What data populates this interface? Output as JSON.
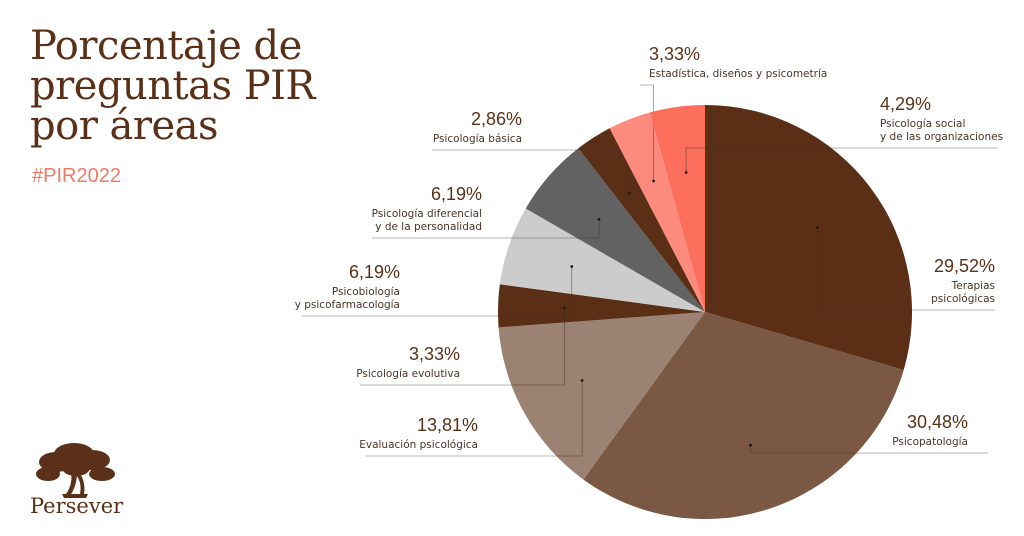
{
  "header": {
    "title_lines": [
      "Porcentaje de",
      "preguntas PIR",
      "por áreas"
    ],
    "hashtag": "#PIR2022"
  },
  "brand": {
    "name": "Persever",
    "logo_icon": "tree-icon",
    "color": "#5a3118"
  },
  "chart_data": {
    "type": "pie",
    "title": "Porcentaje de preguntas PIR por áreas",
    "slices": [
      {
        "label": [
          "Terapias",
          "psicológicas"
        ],
        "value": 29.52,
        "display": "29,52%",
        "color": "#5a2f16"
      },
      {
        "label": [
          "Psicopatología"
        ],
        "value": 30.48,
        "display": "30,48%",
        "color": "#7a5843"
      },
      {
        "label": [
          "Evaluación psicológica"
        ],
        "value": 13.81,
        "display": "13,81%",
        "color": "#9c8272"
      },
      {
        "label": [
          "Psicología evolutiva"
        ],
        "value": 3.33,
        "display": "3,33%",
        "color": "#5a2f16"
      },
      {
        "label": [
          "Psicobiología",
          "y psicofarmacología"
        ],
        "value": 6.19,
        "display": "6,19%",
        "color": "#cccccc"
      },
      {
        "label": [
          "Psicología diferencial",
          "y de la personalidad"
        ],
        "value": 6.19,
        "display": "6,19%",
        "color": "#626262"
      },
      {
        "label": [
          "Psicología básica"
        ],
        "value": 2.86,
        "display": "2,86%",
        "color": "#5a2f16"
      },
      {
        "label": [
          "Estadística, diseños y psicometría"
        ],
        "value": 3.33,
        "display": "3,33%",
        "color": "#fd8b7d"
      },
      {
        "label": [
          "Psicología social",
          "y de las organizaciones"
        ],
        "value": 4.29,
        "display": "4,29%",
        "color": "#fb6f5c"
      }
    ]
  }
}
